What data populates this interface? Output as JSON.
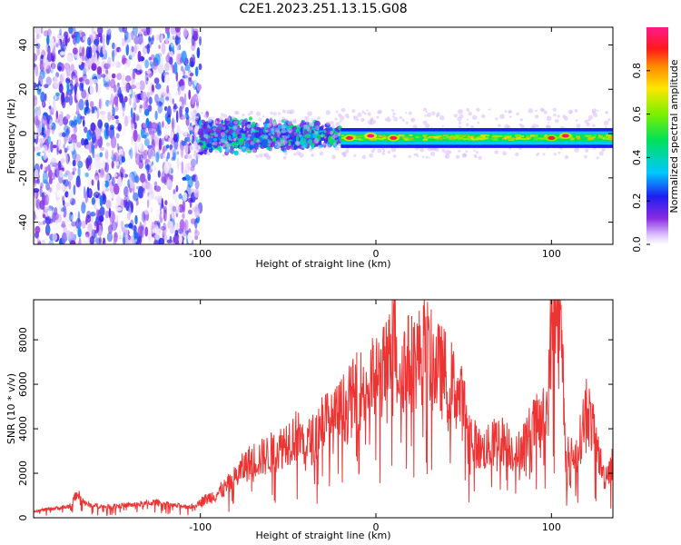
{
  "title": "C2E1.2023.251.13.15.G08",
  "chart_data": [
    {
      "type": "heatmap",
      "xlabel": "Height of straight line (km)",
      "ylabel": "Frequency (Hz)",
      "xlim": [
        -195,
        135
      ],
      "ylim": [
        -50,
        48
      ],
      "xticks": [
        -100,
        0,
        100
      ],
      "yticks": [
        -40,
        -20,
        0,
        20,
        40
      ],
      "colorbar": {
        "label": "Normalized spectral amplitude",
        "range": [
          0.0,
          1.0
        ],
        "ticks": [
          0.0,
          0.2,
          0.4,
          0.6,
          0.8
        ]
      },
      "description_regions": [
        {
          "x_range": [
            -195,
            -100
          ],
          "freq_spread": [
            -50,
            48
          ],
          "amplitude": [
            0.0,
            0.3
          ]
        },
        {
          "x_range": [
            -100,
            -20
          ],
          "freq_center": 0,
          "freq_spread": [
            -8,
            6
          ],
          "amplitude": [
            0.1,
            0.5
          ]
        },
        {
          "x_range": [
            -20,
            135
          ],
          "freq_center": -2,
          "freq_spread": [
            -4,
            2
          ],
          "amplitude": [
            0.3,
            1.0
          ]
        }
      ],
      "hot_spots": [
        {
          "x": -15,
          "y": -2,
          "amplitude": 0.95
        },
        {
          "x": -3,
          "y": -1,
          "amplitude": 1.0
        },
        {
          "x": 10,
          "y": -2,
          "amplitude": 0.95
        },
        {
          "x": 100,
          "y": -2,
          "amplitude": 0.9
        },
        {
          "x": 108,
          "y": -1,
          "amplitude": 0.95
        }
      ]
    },
    {
      "type": "line",
      "xlabel": "Height of straight line (km)",
      "ylabel": "SNR (10 * v/v)",
      "xlim": [
        -195,
        135
      ],
      "ylim": [
        0,
        9800
      ],
      "xticks": [
        -100,
        0,
        100
      ],
      "yticks": [
        0,
        2000,
        4000,
        6000,
        8000
      ],
      "color": "#ee3333",
      "series": [
        {
          "name": "",
          "x": [
            -195,
            -185,
            -175,
            -170,
            -165,
            -155,
            -145,
            -135,
            -125,
            -115,
            -105,
            -100,
            -95,
            -90,
            -85,
            -80,
            -75,
            -70,
            -65,
            -60,
            -55,
            -50,
            -45,
            -40,
            -35,
            -30,
            -25,
            -20,
            -15,
            -10,
            -5,
            0,
            5,
            8,
            10,
            12,
            15,
            20,
            25,
            28,
            30,
            35,
            40,
            45,
            50,
            55,
            60,
            65,
            70,
            75,
            80,
            85,
            90,
            95,
            98,
            100,
            102,
            104,
            106,
            108,
            110,
            115,
            120,
            125,
            130,
            135
          ],
          "y": [
            300,
            400,
            500,
            1100,
            600,
            500,
            550,
            600,
            700,
            550,
            500,
            700,
            900,
            1100,
            1400,
            1800,
            2300,
            2600,
            2700,
            2900,
            3100,
            3500,
            3700,
            3300,
            3600,
            4500,
            4200,
            4800,
            5200,
            5700,
            5900,
            6300,
            6600,
            7200,
            9800,
            6800,
            6900,
            7000,
            7200,
            8000,
            7200,
            6700,
            6400,
            5800,
            5000,
            3500,
            3000,
            3200,
            3600,
            3300,
            2800,
            3500,
            4100,
            4400,
            5000,
            8800,
            9700,
            8500,
            7800,
            3000,
            2700,
            2900,
            5100,
            3500,
            1800,
            2500
          ]
        }
      ]
    }
  ]
}
